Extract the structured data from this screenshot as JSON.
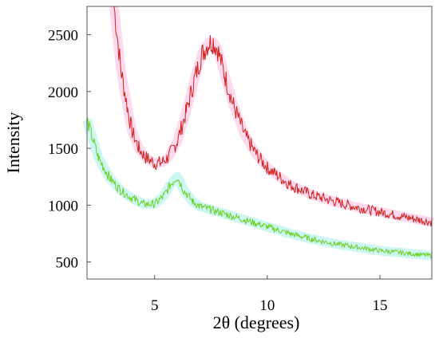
{
  "chart_data": {
    "type": "line",
    "title": "",
    "xlabel": "2θ (degrees)",
    "ylabel": "Intensity",
    "xlim": [
      2.0,
      17.3
    ],
    "ylim": [
      350,
      2750
    ],
    "x_ticks": [
      5,
      10,
      15
    ],
    "y_ticks": [
      500,
      1000,
      1500,
      2000,
      2500
    ],
    "x_tick_labels": [
      "5",
      "10",
      "15"
    ],
    "y_tick_labels": [
      "500",
      "1000",
      "1500",
      "2000",
      "2500"
    ],
    "grid": false,
    "legend": "none",
    "series": [
      {
        "color": "#d0201c",
        "x": [
          3.2,
          3.5,
          3.8,
          4.0,
          4.3,
          4.6,
          5.0,
          5.3,
          5.6,
          6.0,
          6.4,
          6.8,
          7.1,
          7.4,
          7.6,
          7.8,
          8.1,
          8.5,
          9.0,
          9.5,
          10.0,
          11.0,
          12.0,
          13.0,
          14.0,
          15.0,
          16.0,
          17.3
        ],
        "y": [
          2750,
          2200,
          1850,
          1650,
          1500,
          1420,
          1370,
          1375,
          1420,
          1560,
          1820,
          2130,
          2330,
          2430,
          2440,
          2370,
          2150,
          1880,
          1620,
          1450,
          1330,
          1180,
          1090,
          1030,
          980,
          940,
          900,
          850
        ]
      },
      {
        "color": "#6ccf1c",
        "x": [
          2.0,
          2.5,
          3.0,
          3.5,
          4.0,
          4.5,
          5.0,
          5.4,
          5.7,
          6.0,
          6.3,
          6.7,
          7.0,
          7.5,
          8.0,
          9.0,
          10.0,
          11.0,
          12.0,
          13.0,
          14.0,
          15.0,
          16.0,
          17.3
        ],
        "y": [
          1750,
          1420,
          1240,
          1130,
          1060,
          1010,
          1010,
          1080,
          1180,
          1250,
          1130,
          1030,
          990,
          960,
          930,
          870,
          810,
          750,
          700,
          660,
          630,
          600,
          580,
          555
        ]
      }
    ]
  }
}
